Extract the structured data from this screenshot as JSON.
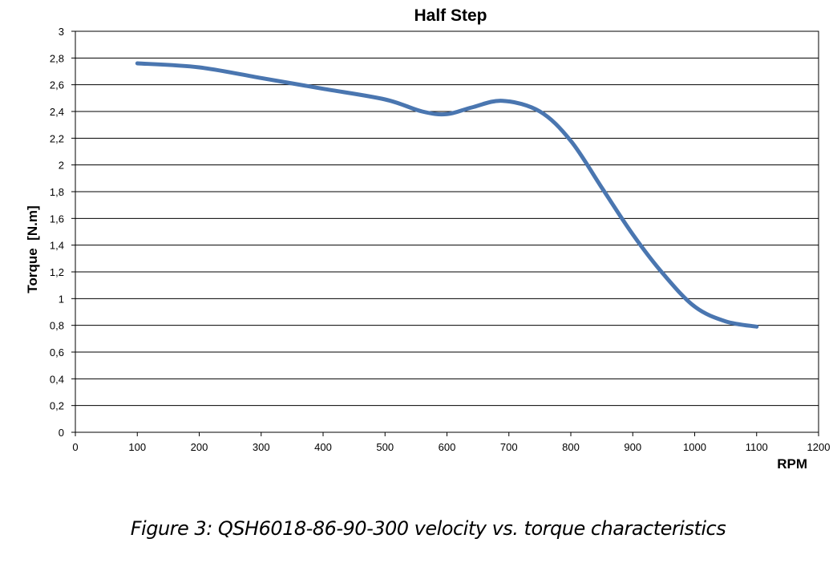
{
  "chart_data": {
    "type": "line",
    "title": "Half Step",
    "xlabel": "RPM",
    "ylabel": "Torque  [N.m]",
    "xlim": [
      0,
      1200
    ],
    "ylim": [
      0,
      3
    ],
    "x_ticks": [
      "0",
      "100",
      "200",
      "300",
      "400",
      "500",
      "600",
      "700",
      "800",
      "900",
      "1000",
      "1100",
      "1200"
    ],
    "y_ticks": [
      "0",
      "0,2",
      "0,4",
      "0,6",
      "0,8",
      "1",
      "1,2",
      "1,4",
      "1,6",
      "1,8",
      "2",
      "2,2",
      "2,4",
      "2,6",
      "2,8",
      "3"
    ],
    "grid": "horizontal",
    "series": [
      {
        "color": "#4a76b0",
        "x": [
          100,
          200,
          300,
          400,
          500,
          560,
          600,
          640,
          690,
          750,
          800,
          850,
          900,
          950,
          1000,
          1050,
          1100
        ],
        "y": [
          2.76,
          2.73,
          2.65,
          2.57,
          2.49,
          2.4,
          2.38,
          2.43,
          2.48,
          2.4,
          2.18,
          1.83,
          1.48,
          1.18,
          0.94,
          0.83,
          0.79
        ]
      }
    ]
  },
  "caption": "Figure 3: QSH6018-86-90-300 velocity vs. torque characteristics"
}
